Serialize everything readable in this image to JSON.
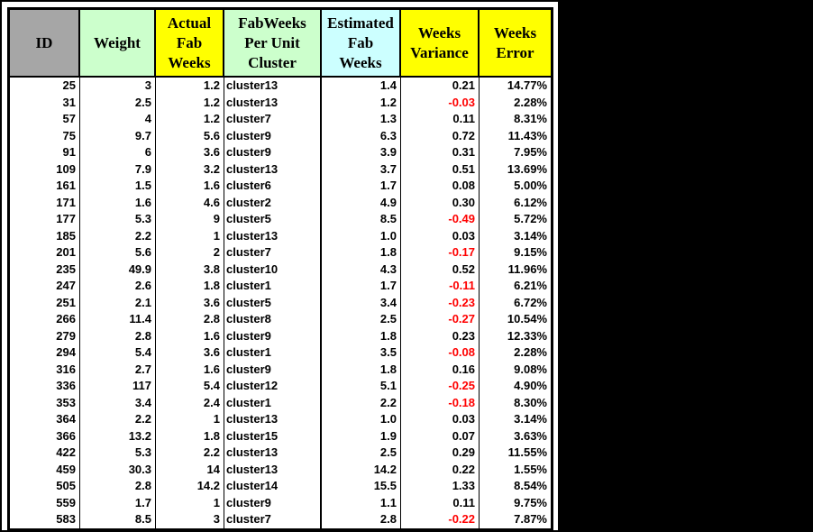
{
  "background_color": "#000000",
  "sheet_color": "#FFFFFF",
  "chart_data": {
    "type": "table",
    "negative_value_color": "#FF0000",
    "header_text_color": "#000000",
    "body_text_color": "#000000",
    "columns": [
      {
        "key": "id",
        "label": "ID",
        "bg": "#A6A6A6",
        "align": "right"
      },
      {
        "key": "weight",
        "label": "Weight",
        "bg": "#CCFFCC",
        "align": "right"
      },
      {
        "key": "actual-fab-weeks",
        "label": "Actual\nFab\nWeeks",
        "bg": "#FFFF00",
        "align": "right"
      },
      {
        "key": "cluster",
        "label": "FabWeeks\nPer Unit\nCluster",
        "bg": "#CCFFCC",
        "align": "left"
      },
      {
        "key": "estimated-fab-weeks",
        "label": "Estimated\nFab\nWeeks",
        "bg": "#CCFFFF",
        "align": "right"
      },
      {
        "key": "weeks-variance",
        "label": "Weeks\nVariance",
        "bg": "#FFFF00",
        "align": "right"
      },
      {
        "key": "weeks-error",
        "label": "Weeks\nError",
        "bg": "#FFFF00",
        "align": "right"
      }
    ],
    "rows": [
      [
        "25",
        "3",
        "1.2",
        "cluster13",
        "1.4",
        "0.21",
        "14.77%"
      ],
      [
        "31",
        "2.5",
        "1.2",
        "cluster13",
        "1.2",
        "-0.03",
        "2.28%"
      ],
      [
        "57",
        "4",
        "1.2",
        "cluster7",
        "1.3",
        "0.11",
        "8.31%"
      ],
      [
        "75",
        "9.7",
        "5.6",
        "cluster9",
        "6.3",
        "0.72",
        "11.43%"
      ],
      [
        "91",
        "6",
        "3.6",
        "cluster9",
        "3.9",
        "0.31",
        "7.95%"
      ],
      [
        "109",
        "7.9",
        "3.2",
        "cluster13",
        "3.7",
        "0.51",
        "13.69%"
      ],
      [
        "161",
        "1.5",
        "1.6",
        "cluster6",
        "1.7",
        "0.08",
        "5.00%"
      ],
      [
        "171",
        "1.6",
        "4.6",
        "cluster2",
        "4.9",
        "0.30",
        "6.12%"
      ],
      [
        "177",
        "5.3",
        "9",
        "cluster5",
        "8.5",
        "-0.49",
        "5.72%"
      ],
      [
        "185",
        "2.2",
        "1",
        "cluster13",
        "1.0",
        "0.03",
        "3.14%"
      ],
      [
        "201",
        "5.6",
        "2",
        "cluster7",
        "1.8",
        "-0.17",
        "9.15%"
      ],
      [
        "235",
        "49.9",
        "3.8",
        "cluster10",
        "4.3",
        "0.52",
        "11.96%"
      ],
      [
        "247",
        "2.6",
        "1.8",
        "cluster1",
        "1.7",
        "-0.11",
        "6.21%"
      ],
      [
        "251",
        "2.1",
        "3.6",
        "cluster5",
        "3.4",
        "-0.23",
        "6.72%"
      ],
      [
        "266",
        "11.4",
        "2.8",
        "cluster8",
        "2.5",
        "-0.27",
        "10.54%"
      ],
      [
        "279",
        "2.8",
        "1.6",
        "cluster9",
        "1.8",
        "0.23",
        "12.33%"
      ],
      [
        "294",
        "5.4",
        "3.6",
        "cluster1",
        "3.5",
        "-0.08",
        "2.28%"
      ],
      [
        "316",
        "2.7",
        "1.6",
        "cluster9",
        "1.8",
        "0.16",
        "9.08%"
      ],
      [
        "336",
        "117",
        "5.4",
        "cluster12",
        "5.1",
        "-0.25",
        "4.90%"
      ],
      [
        "353",
        "3.4",
        "2.4",
        "cluster1",
        "2.2",
        "-0.18",
        "8.30%"
      ],
      [
        "364",
        "2.2",
        "1",
        "cluster13",
        "1.0",
        "0.03",
        "3.14%"
      ],
      [
        "366",
        "13.2",
        "1.8",
        "cluster15",
        "1.9",
        "0.07",
        "3.63%"
      ],
      [
        "422",
        "5.3",
        "2.2",
        "cluster13",
        "2.5",
        "0.29",
        "11.55%"
      ],
      [
        "459",
        "30.3",
        "14",
        "cluster13",
        "14.2",
        "0.22",
        "1.55%"
      ],
      [
        "505",
        "2.8",
        "14.2",
        "cluster14",
        "15.5",
        "1.33",
        "8.54%"
      ],
      [
        "559",
        "1.7",
        "1",
        "cluster9",
        "1.1",
        "0.11",
        "9.75%"
      ],
      [
        "583",
        "8.5",
        "3",
        "cluster7",
        "2.8",
        "-0.22",
        "7.87%"
      ]
    ]
  }
}
